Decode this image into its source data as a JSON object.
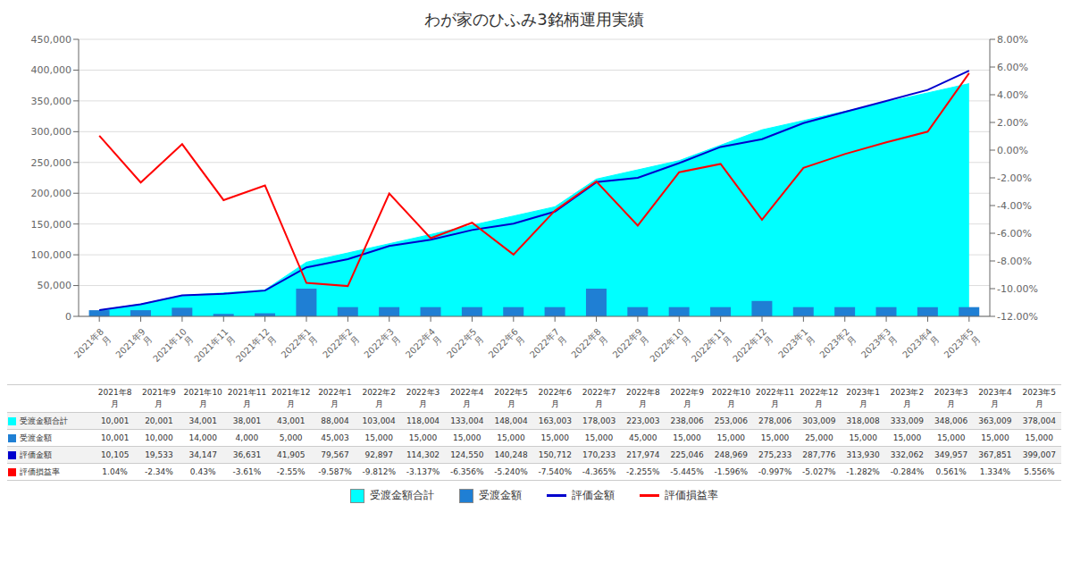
{
  "chart_data": {
    "type": "combo",
    "title": "わが家のひふみ3銘柄運用実績",
    "categories": [
      "2021年8\n月",
      "2021年9\n月",
      "2021年10\n月",
      "2021年11\n月",
      "2021年12\n月",
      "2022年1\n月",
      "2022年2\n月",
      "2022年3\n月",
      "2022年4\n月",
      "2022年5\n月",
      "2022年6\n月",
      "2022年7\n月",
      "2022年8\n月",
      "2022年9\n月",
      "2022年10\n月",
      "2022年11\n月",
      "2022年12\n月",
      "2023年1\n月",
      "2023年2\n月",
      "2023年3\n月",
      "2023年4\n月",
      "2023年5\n月"
    ],
    "series": [
      {
        "name": "受渡金額合計",
        "type": "area",
        "color": "#00FFFF",
        "values": [
          10001,
          20001,
          34001,
          38001,
          43001,
          88004,
          103004,
          118004,
          133004,
          148004,
          163003,
          178003,
          223003,
          238006,
          253006,
          278006,
          303009,
          318008,
          333009,
          348006,
          363009,
          378004
        ],
        "value_labels": [
          "10,001",
          "20,001",
          "34,001",
          "38,001",
          "43,001",
          "88,004",
          "103,004",
          "118,004",
          "133,004",
          "148,004",
          "163,003",
          "178,003",
          "223,003",
          "238,006",
          "253,006",
          "278,006",
          "303,009",
          "318,008",
          "333,009",
          "348,006",
          "363,009",
          "378,004"
        ]
      },
      {
        "name": "受渡金額",
        "type": "bar",
        "color": "#1F7FD4",
        "values": [
          10001,
          10000,
          14000,
          4000,
          5000,
          45003,
          15000,
          15000,
          15000,
          15000,
          15000,
          15000,
          45000,
          15000,
          15000,
          15000,
          25000,
          15000,
          15000,
          15000,
          15000,
          15000
        ],
        "value_labels": [
          "10,001",
          "10,000",
          "14,000",
          "4,000",
          "5,000",
          "45,003",
          "15,000",
          "15,000",
          "15,000",
          "15,000",
          "15,000",
          "15,000",
          "45,000",
          "15,000",
          "15,000",
          "15,000",
          "25,000",
          "15,000",
          "15,000",
          "15,000",
          "15,000",
          "15,000"
        ]
      },
      {
        "name": "評価金額",
        "type": "line",
        "color": "#0000CD",
        "values": [
          10105,
          19533,
          34147,
          36631,
          41905,
          79567,
          92897,
          114302,
          124550,
          140248,
          150712,
          170233,
          217974,
          225046,
          248969,
          275233,
          287776,
          313930,
          332062,
          349957,
          367851,
          399007
        ],
        "value_labels": [
          "10,105",
          "19,533",
          "34,147",
          "36,631",
          "41,905",
          "79,567",
          "92,897",
          "114,302",
          "124,550",
          "140,248",
          "150,712",
          "170,233",
          "217,974",
          "225,046",
          "248,969",
          "275,233",
          "287,776",
          "313,930",
          "332,062",
          "349,957",
          "367,851",
          "399,007"
        ]
      },
      {
        "name": "評価損益率",
        "type": "line",
        "axis": "y2",
        "color": "#FF0000",
        "values": [
          1.04,
          -2.34,
          0.43,
          -3.61,
          -2.55,
          -9.587,
          -9.812,
          -3.137,
          -6.356,
          -5.24,
          -7.54,
          -4.365,
          -2.255,
          -5.445,
          -1.596,
          -0.997,
          -5.027,
          -1.282,
          -0.284,
          0.561,
          1.334,
          5.556
        ],
        "value_labels": [
          "1.04%",
          "-2.34%",
          "0.43%",
          "-3.61%",
          "-2.55%",
          "-9.587%",
          "-9.812%",
          "-3.137%",
          "-6.356%",
          "-5.240%",
          "-7.540%",
          "-4.365%",
          "-2.255%",
          "-5.445%",
          "-1.596%",
          "-0.997%",
          "-5.027%",
          "-1.282%",
          "-0.284%",
          "0.561%",
          "1.334%",
          "5.556%"
        ]
      }
    ],
    "ylim": [
      0,
      450000
    ],
    "yticks": [
      0,
      {
        "value": 50000,
        "label": "50,000"
      },
      {
        "value": 100000,
        "label": "100,000"
      },
      {
        "value": 150000,
        "label": "150,000"
      },
      {
        "value": 200000,
        "label": "200,000"
      },
      {
        "value": 250000,
        "label": "250,000"
      },
      {
        "value": 300000,
        "label": "300,000"
      },
      {
        "value": 350000,
        "label": "350,000"
      },
      {
        "value": 400000,
        "label": "400,000"
      },
      {
        "value": 450000,
        "label": "450,000"
      }
    ],
    "y2lim": [
      -12,
      8
    ],
    "y2ticks": [
      {
        "value": -12,
        "label": "-12.00%"
      },
      {
        "value": -10,
        "label": "-10.00%"
      },
      {
        "value": -8,
        "label": "-8.00%"
      },
      {
        "value": -6,
        "label": "-6.00%"
      },
      {
        "value": -4,
        "label": "-4.00%"
      },
      {
        "value": -2,
        "label": "-2.00%"
      },
      {
        "value": 0,
        "label": "0.00%"
      },
      {
        "value": 2,
        "label": "2.00%"
      },
      {
        "value": 4,
        "label": "4.00%"
      },
      {
        "value": 6,
        "label": "6.00%"
      },
      {
        "value": 8,
        "label": "8.00%"
      }
    ],
    "grid": true,
    "legend": "bottom"
  }
}
